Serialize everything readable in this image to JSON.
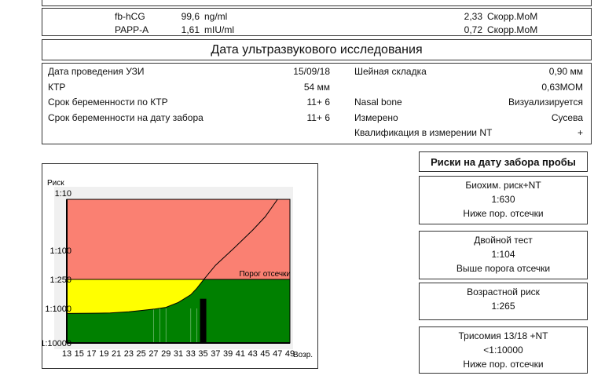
{
  "markers": [
    {
      "name": "fb-hCG",
      "value": "99,6",
      "unit": "ng/ml",
      "mom": "2,33",
      "mom_unit": "Скорр.МоМ"
    },
    {
      "name": "PAPP-A",
      "value": "1,61",
      "unit": "mIU/ml",
      "mom": "0,72",
      "mom_unit": "Скорр.МоМ"
    }
  ],
  "ultrasound": {
    "title": "Дата ультразвукового исследования",
    "left": [
      {
        "label": "Дата проведения УЗИ",
        "value": "15/09/18"
      },
      {
        "label": "КТР",
        "value": "54 мм"
      },
      {
        "label": "Срок беременности по КТР",
        "value": "11+  6"
      },
      {
        "label": "Срок беременности на дату забора",
        "value": "11+  6"
      }
    ],
    "right": [
      {
        "label": "Шейная складка",
        "value": "0,90   мм"
      },
      {
        "label": "",
        "value": "0,63МОМ"
      },
      {
        "label": "Nasal bone",
        "value": "Визуализируется"
      },
      {
        "label": "Измерено",
        "value": "Сусева"
      },
      {
        "label": "Квалификация в измерении NT",
        "value": "+"
      }
    ]
  },
  "risks": {
    "title": "Риски на дату забора пробы",
    "cards": [
      {
        "name": "Биохим. риск+NT",
        "value": "1:630",
        "status": "Ниже пор. отсечки"
      },
      {
        "name": "Двойной тест",
        "value": "1:104",
        "status": "Выше порога отсечки"
      },
      {
        "name": "Возрастной риск",
        "value": "1:265",
        "status": ""
      },
      {
        "name": "Трисомия 13/18 +NT",
        "value": "<1:10000",
        "status": "Ниже пор. отсечки"
      }
    ]
  },
  "chart_data": {
    "type": "line",
    "ylabel": "Риск",
    "xlabel": "Возр.",
    "cutoff_label": "Порог отсечки",
    "y_scale": "log (risk 1:N)",
    "y_ticks": [
      "1:10",
      "1:100",
      "1:250",
      "1:1000",
      "1:10000"
    ],
    "y_tick_values": [
      10,
      100,
      250,
      1000,
      10000
    ],
    "x_ticks": [
      13,
      15,
      17,
      19,
      21,
      23,
      25,
      27,
      29,
      31,
      33,
      35,
      37,
      39,
      41,
      43,
      45,
      47,
      49
    ],
    "xlim": [
      13,
      49
    ],
    "cutoff": 250,
    "colors": {
      "above_cutoff": "#fa8072",
      "between": "#ffff00",
      "below": "#008000"
    },
    "age_curve": {
      "x": [
        13,
        17,
        20,
        23,
        25,
        27,
        29,
        31,
        33,
        34,
        35,
        37,
        40,
        43,
        45,
        47
      ],
      "y": [
        1400,
        1380,
        1350,
        1250,
        1150,
        1050,
        950,
        750,
        520,
        380,
        260,
        160,
        90,
        40,
        22,
        10
      ]
    },
    "patient_marker": {
      "age": 35,
      "risk": 630
    }
  }
}
